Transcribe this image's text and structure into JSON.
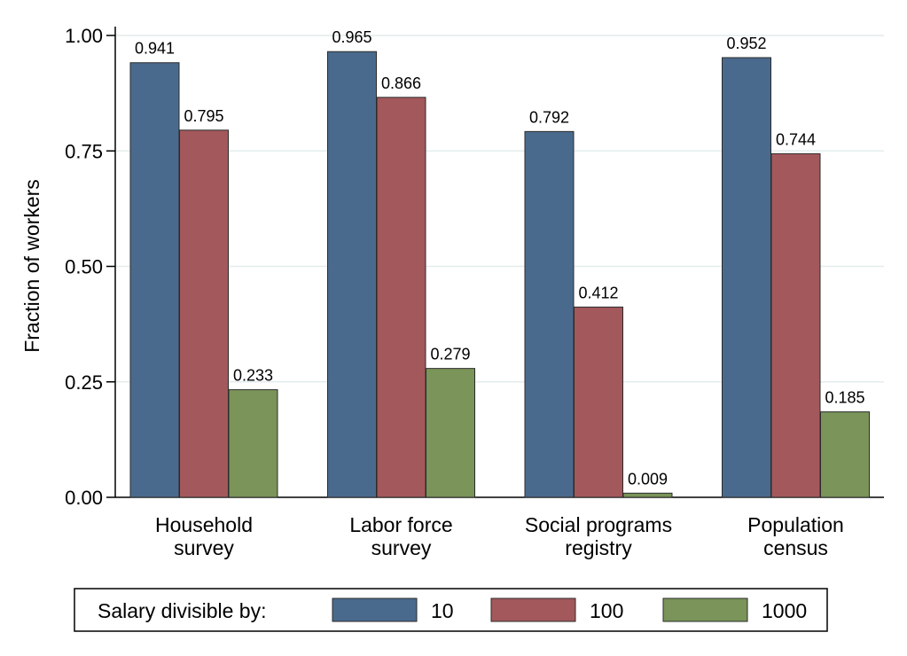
{
  "chart_data": {
    "type": "bar",
    "ylabel": "Fraction of workers",
    "xlabel": "",
    "ylim": [
      0,
      1
    ],
    "yticks": [
      0,
      0.25,
      0.5,
      0.75,
      1
    ],
    "ytick_labels": [
      "0.00",
      "0.25",
      "0.50",
      "0.75",
      "1.00"
    ],
    "grid": true,
    "categories": [
      [
        "Household",
        "survey"
      ],
      [
        "Labor force",
        "survey"
      ],
      [
        "Social programs",
        "registry"
      ],
      [
        "Population",
        "census"
      ]
    ],
    "series": [
      {
        "name": "10",
        "color": "#4a6a8d",
        "values": [
          0.941,
          0.965,
          0.792,
          0.952
        ],
        "labels": [
          "0.941",
          "0.965",
          "0.792",
          "0.952"
        ]
      },
      {
        "name": "100",
        "color": "#a3585b",
        "values": [
          0.795,
          0.866,
          0.412,
          0.744
        ],
        "labels": [
          "0.795",
          "0.866",
          "0.412",
          "0.744"
        ]
      },
      {
        "name": "1000",
        "color": "#7a9459",
        "values": [
          0.233,
          0.279,
          0.009,
          0.185
        ],
        "labels": [
          "0.233",
          "0.279",
          "0.009",
          "0.185"
        ]
      }
    ],
    "legend": {
      "title": "Salary divisible by:",
      "placement": "bottom"
    }
  }
}
